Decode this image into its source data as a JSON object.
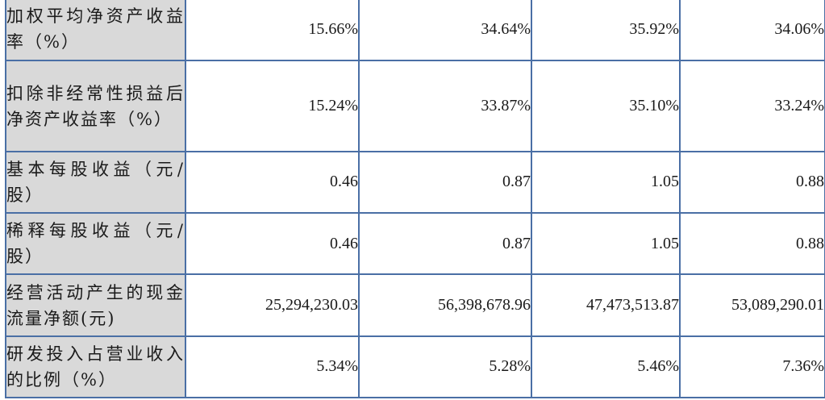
{
  "table": {
    "rows": [
      {
        "label": "加权平均净资产收益率（%）",
        "values": [
          "15.66%",
          "34.64%",
          "35.92%",
          "34.06%"
        ]
      },
      {
        "label": "扣除非经常性损益后净资产收益率（%）",
        "values": [
          "15.24%",
          "33.87%",
          "35.10%",
          "33.24%"
        ]
      },
      {
        "label": "基本每股收益（元/股）",
        "values": [
          "0.46",
          "0.87",
          "1.05",
          "0.88"
        ]
      },
      {
        "label": "稀释每股收益（元/股）",
        "values": [
          "0.46",
          "0.87",
          "1.05",
          "0.88"
        ]
      },
      {
        "label": "经营活动产生的现金流量净额(元)",
        "values": [
          "25,294,230.03",
          "56,398,678.96",
          "47,473,513.87",
          "53,089,290.01"
        ]
      },
      {
        "label": "研发投入占营业收入的比例（%）",
        "values": [
          "5.34%",
          "5.28%",
          "5.46%",
          "7.36%"
        ]
      }
    ]
  },
  "colors": {
    "border": "#4a6fa5",
    "label_background": "#d9d9d9"
  }
}
